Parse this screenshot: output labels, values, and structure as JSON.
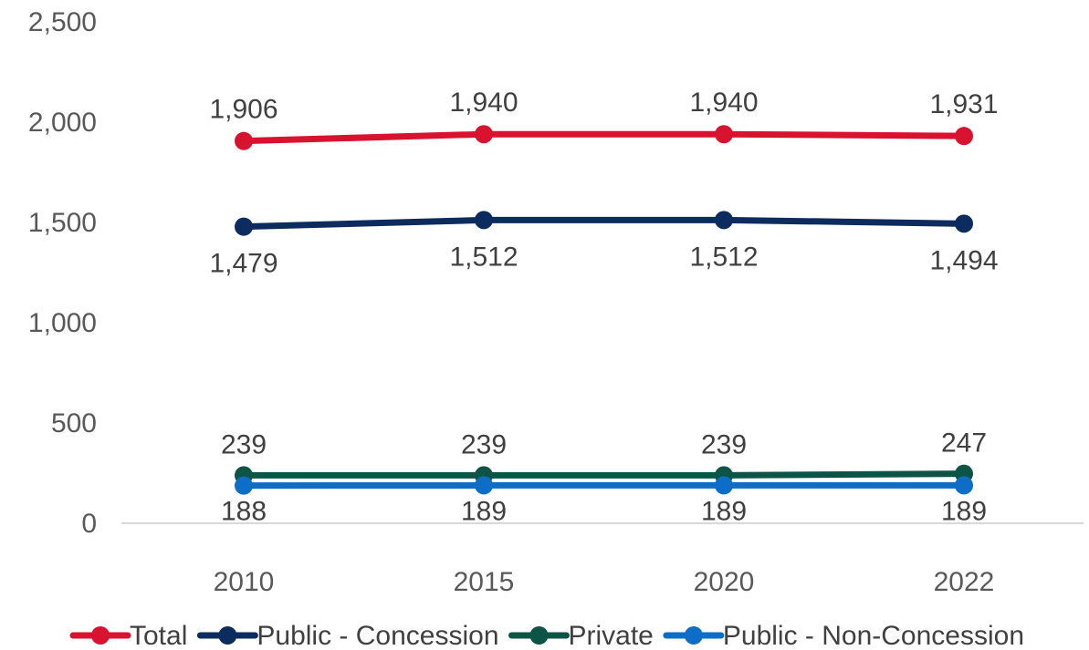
{
  "chart_data": {
    "type": "line",
    "categories": [
      "2010",
      "2015",
      "2020",
      "2022"
    ],
    "ylim": [
      0,
      2500
    ],
    "yticks": [
      0,
      500,
      1000,
      1500,
      2000,
      2500
    ],
    "ytick_labels": [
      "0",
      "500",
      "1,000",
      "1,500",
      "2,000",
      "2,500"
    ],
    "grid": false,
    "legend_position": "bottom",
    "series": [
      {
        "name": "Total",
        "values": [
          1906,
          1940,
          1940,
          1931
        ],
        "labels": [
          "1,906",
          "1,940",
          "1,940",
          "1,931"
        ],
        "color": "#D7132F",
        "label_pos": [
          "above",
          "above",
          "above",
          "above"
        ]
      },
      {
        "name": "Public - Concession",
        "values": [
          1479,
          1512,
          1512,
          1494
        ],
        "labels": [
          "1,479",
          "1,512",
          "1,512",
          "1,494"
        ],
        "color": "#0C2B5E",
        "label_pos": [
          "below",
          "below",
          "below",
          "below"
        ]
      },
      {
        "name": "Private",
        "values": [
          239,
          239,
          239,
          247
        ],
        "labels": [
          "239",
          "239",
          "239",
          "247"
        ],
        "color": "#0B5446",
        "label_pos": [
          "above",
          "above",
          "above",
          "above"
        ]
      },
      {
        "name": "Public - Non-Concession",
        "values": [
          188,
          189,
          189,
          189
        ],
        "labels": [
          "188",
          "189",
          "189",
          "189"
        ],
        "color": "#0E6DC6",
        "label_pos": [
          "below",
          "below",
          "below",
          "below"
        ]
      }
    ]
  }
}
